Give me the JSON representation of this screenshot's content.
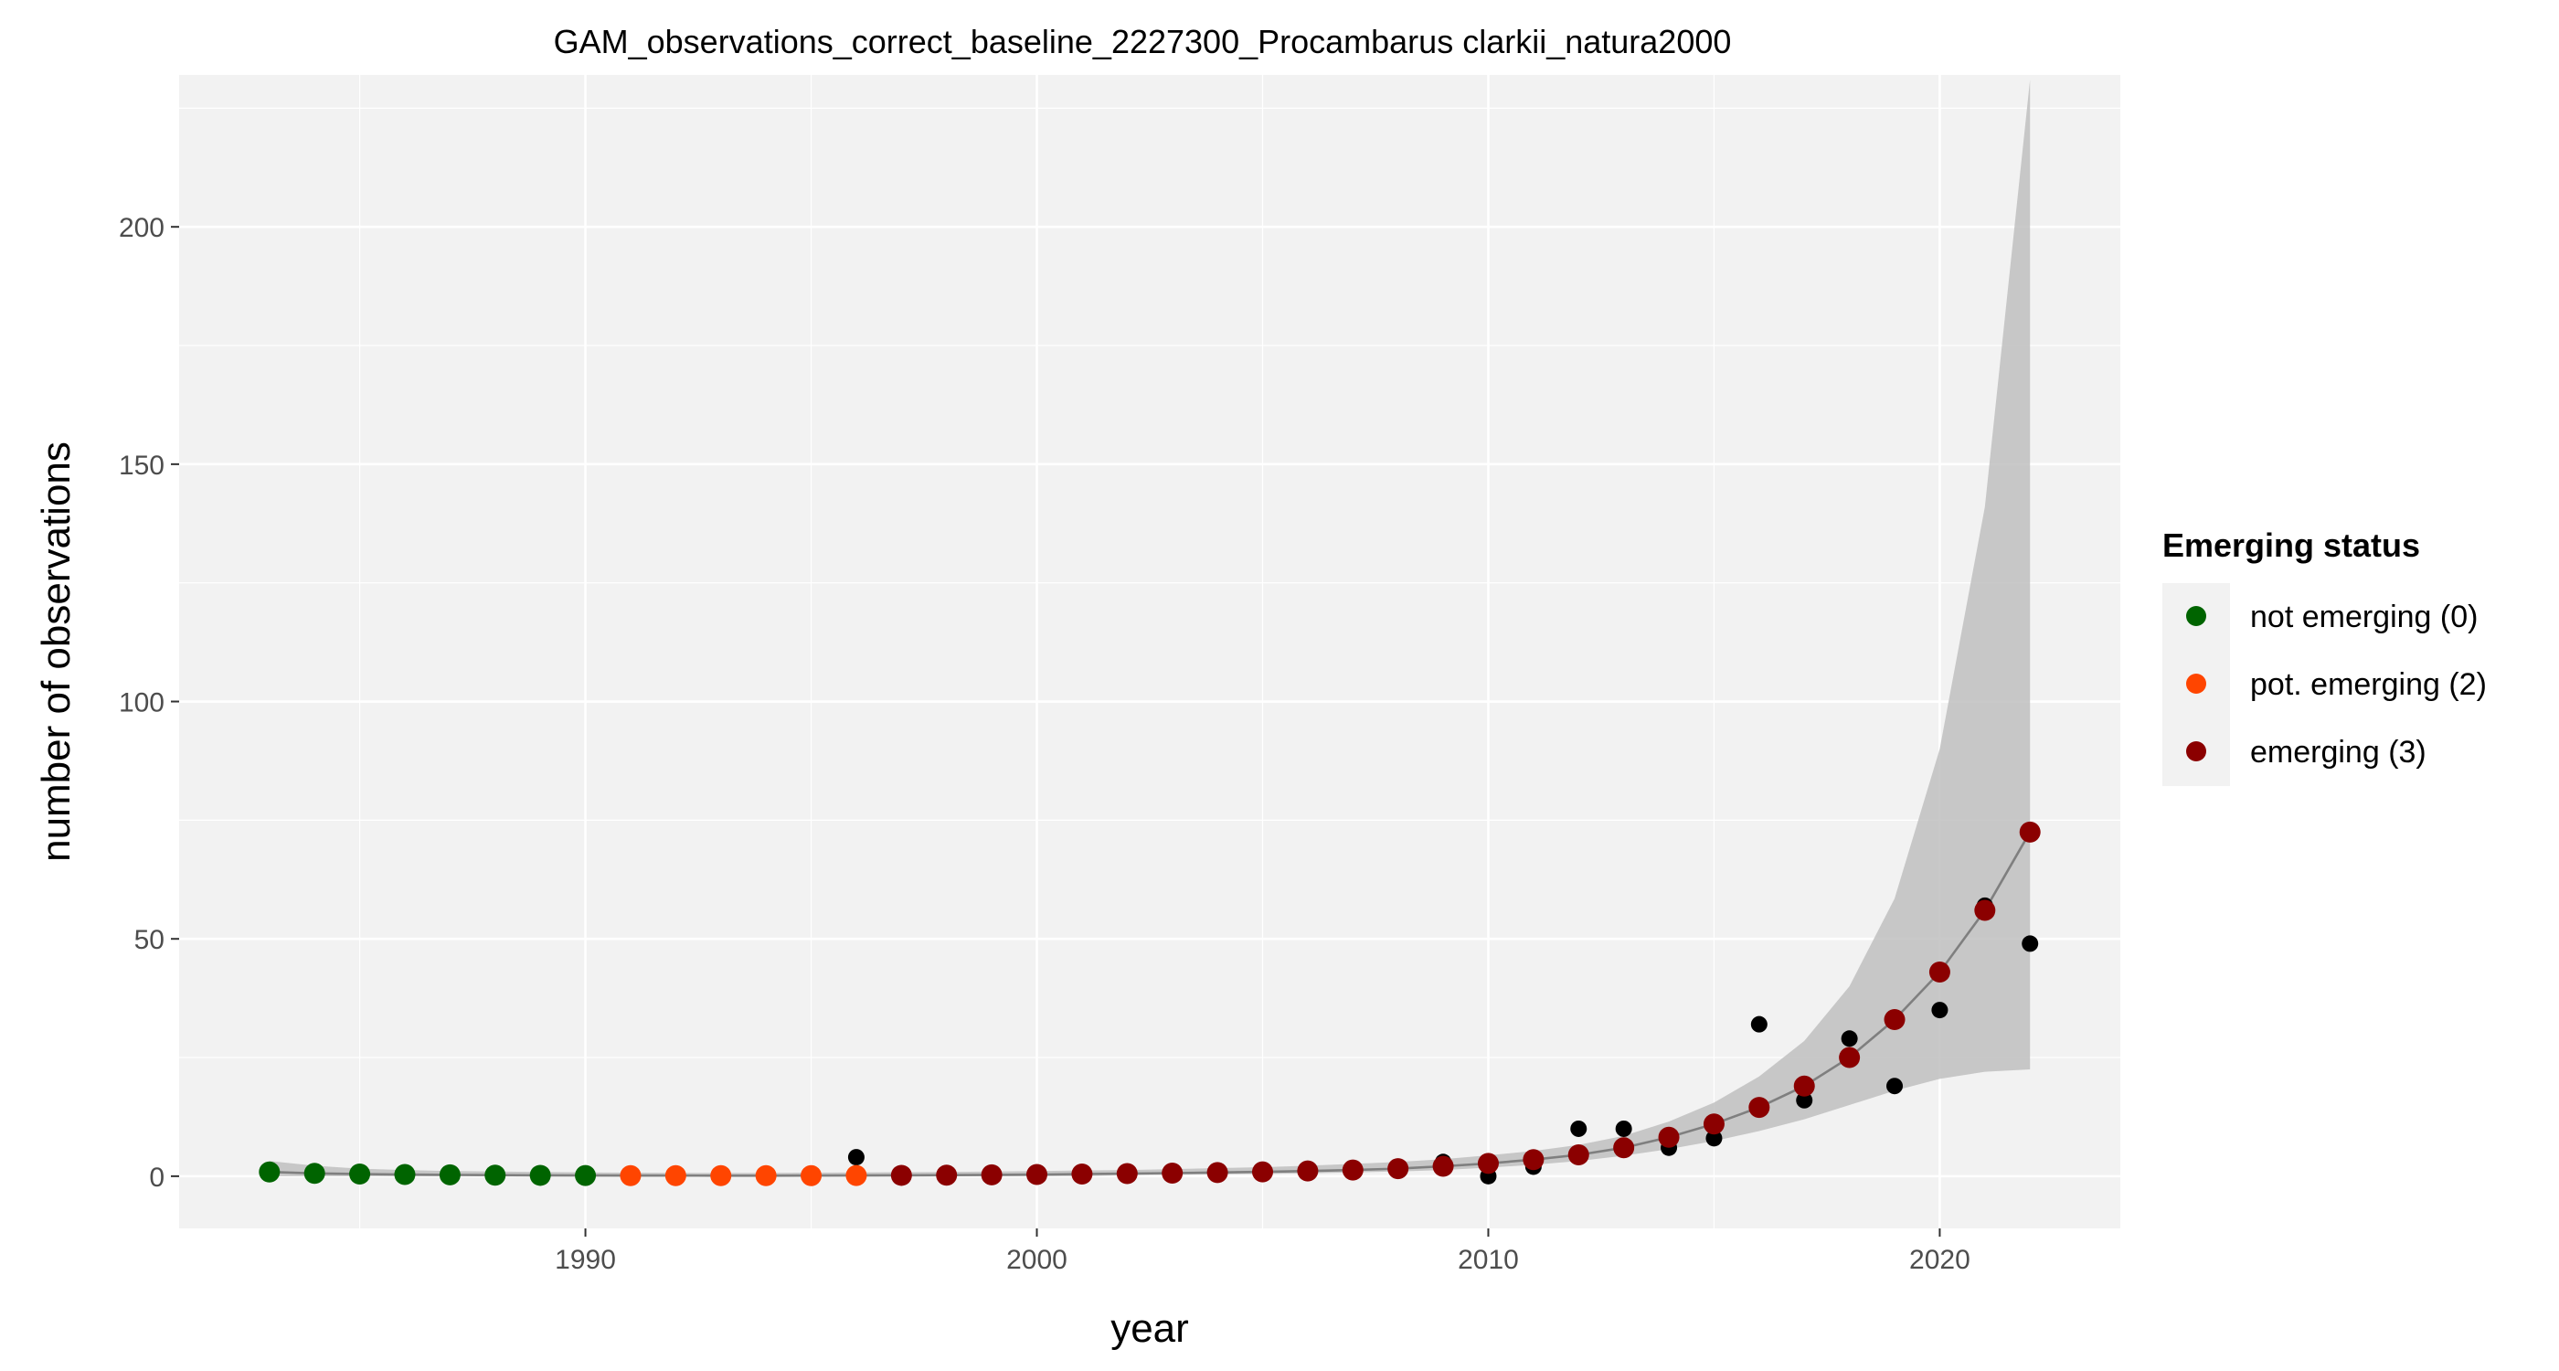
{
  "chart_data": {
    "type": "scatter",
    "title": "GAM_observations_correct_baseline_2227300_Procambarus clarkii_natura2000",
    "xlabel": "year",
    "ylabel": "number of observations",
    "xlim": [
      1981,
      2024
    ],
    "ylim": [
      -11,
      232
    ],
    "x_ticks": [
      1990,
      2000,
      2010,
      2020
    ],
    "y_ticks": [
      0,
      50,
      100,
      150,
      200
    ],
    "grid": true,
    "legend": {
      "title": "Emerging status",
      "position": "right",
      "entries": [
        {
          "label": "not emerging (0)",
          "color": "#006400"
        },
        {
          "label": "pot. emerging (2)",
          "color": "#FF4500"
        },
        {
          "label": "emerging (3)",
          "color": "#8B0000"
        }
      ]
    },
    "colors": {
      "panel": "#F2F2F2",
      "gridline": "#FFFFFF",
      "ribbon": "#BFBFBF",
      "fit_line": "#7F7F7F",
      "observed": "#000000"
    },
    "observed": {
      "x": [
        1996,
        2009,
        2010,
        2011,
        2012,
        2013,
        2014,
        2015,
        2016,
        2017,
        2018,
        2019,
        2020,
        2021,
        2022
      ],
      "y": [
        4,
        3,
        0,
        2,
        10,
        10,
        6,
        8,
        32,
        16,
        29,
        19,
        35,
        57,
        49
      ]
    },
    "fit": {
      "x": [
        1983,
        1984,
        1985,
        1986,
        1987,
        1988,
        1989,
        1990,
        1991,
        1992,
        1993,
        1994,
        1995,
        1996,
        1997,
        1998,
        1999,
        2000,
        2001,
        2002,
        2003,
        2004,
        2005,
        2006,
        2007,
        2008,
        2009,
        2010,
        2011,
        2012,
        2013,
        2014,
        2015,
        2016,
        2017,
        2018,
        2019,
        2020,
        2021,
        2022
      ],
      "y": [
        0.9,
        0.6,
        0.45,
        0.35,
        0.28,
        0.22,
        0.18,
        0.15,
        0.13,
        0.12,
        0.11,
        0.11,
        0.12,
        0.14,
        0.18,
        0.22,
        0.28,
        0.35,
        0.45,
        0.55,
        0.65,
        0.78,
        0.92,
        1.1,
        1.3,
        1.6,
        2.1,
        2.7,
        3.5,
        4.5,
        6.0,
        8.2,
        11.0,
        14.5,
        19.0,
        25.0,
        33.0,
        43.0,
        56.0,
        72.5
      ],
      "status": [
        0,
        0,
        0,
        0,
        0,
        0,
        0,
        0,
        2,
        2,
        2,
        2,
        2,
        2,
        3,
        3,
        3,
        3,
        3,
        3,
        3,
        3,
        3,
        3,
        3,
        3,
        3,
        3,
        3,
        3,
        3,
        3,
        3,
        3,
        3,
        3,
        3,
        3,
        3,
        3
      ],
      "lower": [
        0,
        0,
        0,
        0,
        0,
        0,
        0,
        0,
        0,
        0,
        0,
        0,
        0,
        0,
        0,
        0,
        0,
        0,
        0,
        0.2,
        0.3,
        0.4,
        0.5,
        0.6,
        0.8,
        1.0,
        1.3,
        1.8,
        2.4,
        3.2,
        4.3,
        5.7,
        7.4,
        9.5,
        12.0,
        15.0,
        18.0,
        20.5,
        22.0,
        22.5
      ],
      "upper": [
        3.2,
        2.2,
        1.6,
        1.3,
        1.1,
        1.0,
        0.9,
        0.8,
        0.75,
        0.7,
        0.7,
        0.7,
        0.75,
        0.8,
        0.85,
        0.9,
        1.0,
        1.1,
        1.2,
        1.3,
        1.5,
        1.7,
        1.9,
        2.2,
        2.6,
        3.0,
        3.6,
        4.4,
        5.3,
        6.6,
        8.5,
        11.5,
        15.5,
        21.0,
        28.5,
        40.0,
        58.5,
        90.0,
        141.0,
        231.0
      ]
    }
  }
}
